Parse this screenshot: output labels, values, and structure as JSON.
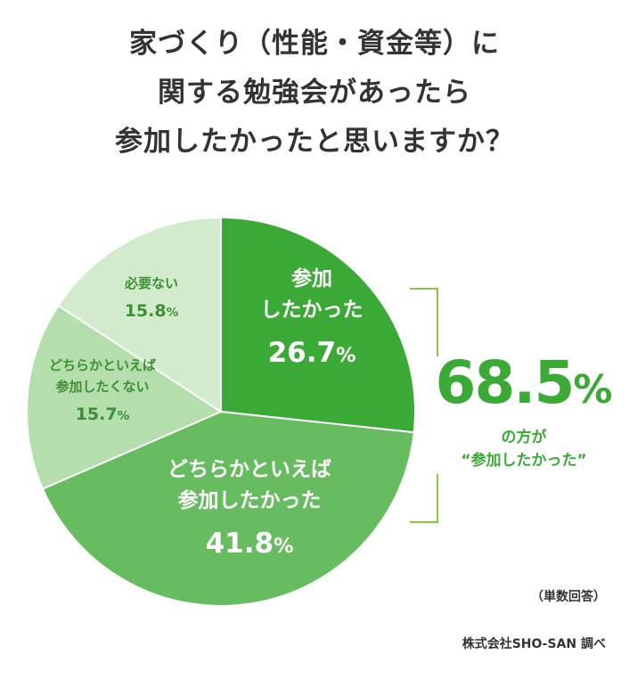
{
  "chart_data": {
    "type": "pie",
    "title": [
      "家づくり（性能・資金等）に",
      "関する勉強会があったら",
      "参加したかったと思いますか？"
    ],
    "slices": [
      {
        "label_lines": [
          "参加",
          "したかった"
        ],
        "value": 26.7,
        "color": "#3aa935",
        "text_color": "#ffffff"
      },
      {
        "label_lines": [
          "どちらかといえば",
          "参加したかった"
        ],
        "value": 41.8,
        "color": "#66bc5e",
        "text_color": "#ffffff"
      },
      {
        "label_lines": [
          "どちらかといえば",
          "参加したくない"
        ],
        "value": 15.7,
        "color": "#b4deac",
        "text_color": "#3d8f33"
      },
      {
        "label_lines": [
          "必要ない"
        ],
        "value": 15.8,
        "color": "#d2ebcc",
        "text_color": "#3d8f33"
      }
    ],
    "unit": "%",
    "summary": {
      "value": "68.5",
      "unit": "%",
      "lines": [
        "の方が",
        "“参加したかった”"
      ]
    },
    "note": "（単数回答）",
    "source": "株式会社SHO-SAN 調べ"
  }
}
